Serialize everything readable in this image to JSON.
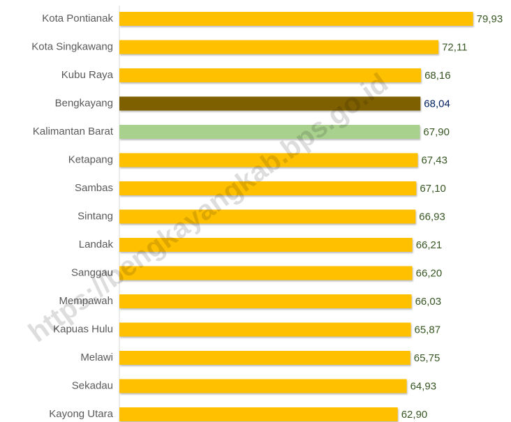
{
  "chart_data": {
    "type": "barh",
    "categories": [
      "Kota Pontianak",
      "Kota Singkawang",
      "Kubu Raya",
      "Bengkayang",
      "Kalimantan Barat",
      "Ketapang",
      "Sambas",
      "Sintang",
      "Landak",
      "Sanggau",
      "Mempawah",
      "Kapuas Hulu",
      "Melawi",
      "Sekadau",
      "Kayong Utara"
    ],
    "values": [
      79.93,
      72.11,
      68.16,
      68.04,
      67.9,
      67.43,
      67.1,
      66.93,
      66.21,
      66.2,
      66.03,
      65.87,
      65.75,
      64.93,
      62.9
    ],
    "value_labels": [
      "79,93",
      "72,11",
      "68,16",
      "68,04",
      "67,90",
      "67,43",
      "67,10",
      "66,93",
      "66,21",
      "66,20",
      "66,03",
      "65,87",
      "65,75",
      "64,93",
      "62,90"
    ],
    "colors": [
      "#ffc000",
      "#ffc000",
      "#ffc000",
      "#7f6000",
      "#a9d18e",
      "#ffc000",
      "#ffc000",
      "#ffc000",
      "#ffc000",
      "#ffc000",
      "#ffc000",
      "#ffc000",
      "#ffc000",
      "#ffc000",
      "#ffc000"
    ],
    "value_label_colors": [
      "#375623",
      "#375623",
      "#375623",
      "#002060",
      "#375623",
      "#375623",
      "#375623",
      "#375623",
      "#375623",
      "#375623",
      "#375623",
      "#375623",
      "#375623",
      "#375623",
      "#375623"
    ],
    "xlim": [
      0,
      88.5
    ],
    "watermark": "https://bengkayangkab.bps.go.id"
  }
}
